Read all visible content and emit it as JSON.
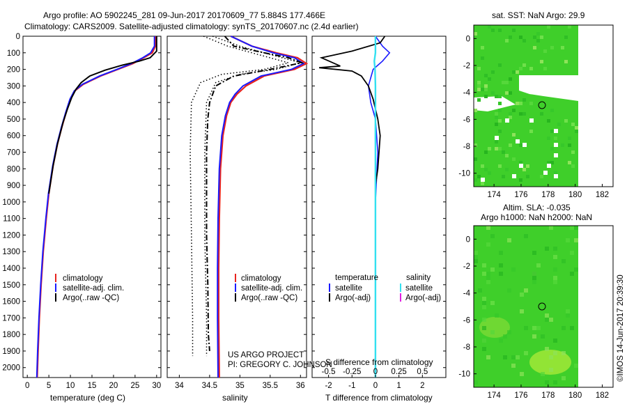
{
  "title_line1": "Argo profile: AO 5902245_281 09-Jun-2017 20170609_77 5.884S 177.466E",
  "title_line2": "Climatology: CARS2009. Satellite-adjusted climatology: synTS_20170607.nc (2.4d earlier)",
  "colors": {
    "climatology": "#e8231e",
    "satellite": "#1a1aff",
    "argo": "#000000",
    "sat_salinity": "#33e0f0",
    "argo_adj_sal": "#e020e0",
    "map_green": "#3fcf2a"
  },
  "depth_axis": {
    "ticks": [
      "0",
      "100",
      "200",
      "300",
      "400",
      "500",
      "600",
      "700",
      "800",
      "900",
      "1000",
      "1100",
      "1200",
      "1300",
      "1400",
      "1500",
      "1600",
      "1700",
      "1800",
      "1900",
      "2000"
    ],
    "max": 2060
  },
  "chart_data": [
    {
      "type": "line",
      "name": "temperature-panel",
      "xlabel": "temperature (deg C)",
      "xlim": [
        -1,
        31
      ],
      "xticks": [
        "0",
        "5",
        "10",
        "15",
        "20",
        "25",
        "30"
      ],
      "legend": [
        "climatology",
        "satellite-adj. clim.",
        "Argo(..raw -QC)"
      ],
      "series": [
        {
          "name": "climatology",
          "points": [
            [
              29.8,
              0
            ],
            [
              29.7,
              60
            ],
            [
              29,
              100
            ],
            [
              27,
              130
            ],
            [
              24.5,
              165
            ],
            [
              21,
              200
            ],
            [
              17,
              240
            ],
            [
              13,
              290
            ],
            [
              11,
              330
            ],
            [
              10,
              380
            ],
            [
              9,
              460
            ],
            [
              8,
              550
            ],
            [
              7,
              650
            ],
            [
              6,
              780
            ],
            [
              5,
              950
            ],
            [
              4.4,
              1100
            ],
            [
              3.7,
              1300
            ],
            [
              3.2,
              1500
            ],
            [
              2.8,
              1700
            ],
            [
              2.5,
              1900
            ],
            [
              2.3,
              2060
            ]
          ]
        },
        {
          "name": "satellite-adj. clim.",
          "points": [
            [
              29.5,
              0
            ],
            [
              29.5,
              60
            ],
            [
              28.6,
              100
            ],
            [
              26.8,
              130
            ],
            [
              24.2,
              165
            ],
            [
              20.8,
              200
            ],
            [
              16.8,
              240
            ],
            [
              12.8,
              290
            ],
            [
              10.9,
              330
            ],
            [
              9.9,
              380
            ],
            [
              8.9,
              460
            ],
            [
              7.9,
              550
            ],
            [
              6.9,
              650
            ],
            [
              5.9,
              780
            ],
            [
              4.9,
              950
            ],
            [
              4.3,
              1100
            ],
            [
              3.6,
              1300
            ],
            [
              3.1,
              1500
            ],
            [
              2.7,
              1700
            ],
            [
              2.4,
              1900
            ],
            [
              2.2,
              2060
            ]
          ]
        },
        {
          "name": "Argo(..raw -QC)",
          "points": [
            [
              30,
              0
            ],
            [
              30,
              90
            ],
            [
              28.5,
              130
            ],
            [
              26,
              150
            ],
            [
              22,
              175
            ],
            [
              18,
              205
            ],
            [
              14.5,
              240
            ],
            [
              12.5,
              280
            ],
            [
              11.3,
              320
            ],
            [
              10.3,
              370
            ],
            [
              9.3,
              440
            ],
            [
              8.3,
              520
            ],
            [
              7,
              650
            ],
            [
              6,
              780
            ],
            [
              5,
              950
            ]
          ]
        }
      ]
    },
    {
      "type": "line",
      "name": "salinity-panel",
      "xlabel": "salinity",
      "xlim": [
        33.8,
        36.1
      ],
      "xticks": [
        "34",
        "34.5",
        "35",
        "35.5",
        "36"
      ],
      "legend": [
        "climatology",
        "satellite-adj. clim.",
        "Argo(..raw -QC)"
      ],
      "annotation": [
        "US ARGO PROJECT",
        "PI: GREGORY C. JOHNSON"
      ],
      "series": [
        {
          "name": "climatology",
          "points": [
            [
              34.85,
              0
            ],
            [
              35.2,
              60
            ],
            [
              35.6,
              100
            ],
            [
              35.95,
              130
            ],
            [
              36.1,
              165
            ],
            [
              35.9,
              200
            ],
            [
              35.4,
              240
            ],
            [
              35.1,
              300
            ],
            [
              34.95,
              350
            ],
            [
              34.85,
              400
            ],
            [
              34.78,
              480
            ],
            [
              34.72,
              600
            ],
            [
              34.68,
              800
            ],
            [
              34.66,
              1100
            ],
            [
              34.65,
              1400
            ],
            [
              34.65,
              1700
            ],
            [
              34.66,
              2060
            ]
          ]
        },
        {
          "name": "satellite-adj. clim.",
          "points": [
            [
              34.85,
              0
            ],
            [
              35.2,
              60
            ],
            [
              35.55,
              100
            ],
            [
              35.9,
              130
            ],
            [
              36.05,
              165
            ],
            [
              35.85,
              200
            ],
            [
              35.35,
              240
            ],
            [
              35.05,
              300
            ],
            [
              34.92,
              350
            ],
            [
              34.83,
              400
            ],
            [
              34.76,
              480
            ],
            [
              34.7,
              600
            ],
            [
              34.66,
              800
            ],
            [
              34.64,
              1100
            ],
            [
              34.63,
              1400
            ],
            [
              34.63,
              1700
            ],
            [
              34.64,
              2060
            ]
          ]
        },
        {
          "name": "Argo(..raw -QC)",
          "points": [
            [
              34.75,
              0
            ],
            [
              34.9,
              60
            ],
            [
              35.4,
              100
            ],
            [
              35.8,
              130
            ],
            [
              36.02,
              160
            ],
            [
              35.5,
              200
            ],
            [
              34.9,
              240
            ],
            [
              34.6,
              300
            ],
            [
              34.5,
              400
            ],
            [
              34.47,
              500
            ],
            [
              34.45,
              700
            ],
            [
              34.45,
              900
            ],
            [
              34.45,
              1200
            ],
            [
              34.47,
              1500
            ],
            [
              34.48,
              1800
            ],
            [
              34.5,
              1900
            ]
          ]
        },
        {
          "name": "dotted-1",
          "points": [
            [
              34.4,
              0
            ],
            [
              34.8,
              60
            ],
            [
              35.3,
              110
            ],
            [
              35.8,
              160
            ],
            [
              35.4,
              200
            ],
            [
              34.7,
              230
            ],
            [
              34.35,
              280
            ],
            [
              34.2,
              400
            ],
            [
              34.18,
              700
            ],
            [
              34.2,
              1200
            ],
            [
              34.22,
              1700
            ],
            [
              34.22,
              1930
            ]
          ]
        },
        {
          "name": "dotted-2",
          "points": [
            [
              34.55,
              0
            ],
            [
              35,
              60
            ],
            [
              35.5,
              110
            ],
            [
              36,
              160
            ],
            [
              35.6,
              200
            ],
            [
              35,
              230
            ],
            [
              34.6,
              280
            ],
            [
              34.45,
              400
            ],
            [
              34.42,
              700
            ],
            [
              34.42,
              1200
            ],
            [
              34.45,
              1700
            ],
            [
              34.45,
              1930
            ]
          ]
        }
      ]
    },
    {
      "type": "line",
      "name": "difference-panel",
      "xlabel_top": "S difference from climatology",
      "xlabel_bottom": "T difference from climatology",
      "xlim": [
        -2.7,
        3
      ],
      "xticks_bottom": [
        "-2",
        "-1",
        "0",
        "1",
        "2"
      ],
      "xticks_top": [
        "-0.5",
        "-0.25",
        "0",
        "0.25",
        "0.5"
      ],
      "legend_temperature": [
        "temperature",
        "satellite",
        "Argo(-adj)"
      ],
      "legend_salinity": [
        "salinity",
        "satellite",
        "Argo(-adj)"
      ],
      "series": [
        {
          "name": "T satellite",
          "points": [
            [
              0,
              0
            ],
            [
              0.3,
              60
            ],
            [
              0.6,
              100
            ],
            [
              0.3,
              150
            ],
            [
              -0.1,
              200
            ],
            [
              -0.3,
              300
            ],
            [
              -0.2,
              400
            ],
            [
              0,
              500
            ],
            [
              0.1,
              700
            ],
            [
              0,
              1000
            ],
            [
              0,
              1400
            ],
            [
              0,
              2060
            ]
          ]
        },
        {
          "name": "T Argo(-adj)",
          "points": [
            [
              0.4,
              0
            ],
            [
              0.2,
              40
            ],
            [
              -1,
              90
            ],
            [
              -2.3,
              130
            ],
            [
              -1.5,
              180
            ],
            [
              -2.4,
              190
            ],
            [
              -1,
              210
            ],
            [
              -0.6,
              240
            ],
            [
              -0.3,
              300
            ],
            [
              -0.1,
              380
            ],
            [
              0.1,
              500
            ],
            [
              0.2,
              600
            ],
            [
              0.1,
              800
            ],
            [
              0,
              900
            ]
          ]
        },
        {
          "name": "S satellite",
          "points": [
            [
              0,
              0
            ],
            [
              0,
              60
            ],
            [
              0,
              100
            ],
            [
              -0.05,
              150
            ],
            [
              -0.02,
              200
            ],
            [
              0,
              300
            ],
            [
              0,
              500
            ],
            [
              0,
              1000
            ],
            [
              0,
              2060
            ]
          ]
        }
      ]
    }
  ],
  "sst_map": {
    "title": "sat. SST: NaN Argo: 29.9",
    "xticks": [
      "174",
      "176",
      "178",
      "180",
      "182"
    ],
    "yticks": [
      "0",
      "-2",
      "-4",
      "-6",
      "-8",
      "-10"
    ]
  },
  "sla_map": {
    "title_line1": "Altim. SLA: -0.035",
    "title_line2": "Argo h1000: NaN h2000: NaN",
    "xticks": [
      "174",
      "176",
      "178",
      "180",
      "182"
    ],
    "yticks": [
      "0",
      "-2",
      "-4",
      "-6",
      "-8",
      "-10"
    ]
  },
  "imos_stamp": "©IMOS 14-Jun-2017 20:39:30"
}
